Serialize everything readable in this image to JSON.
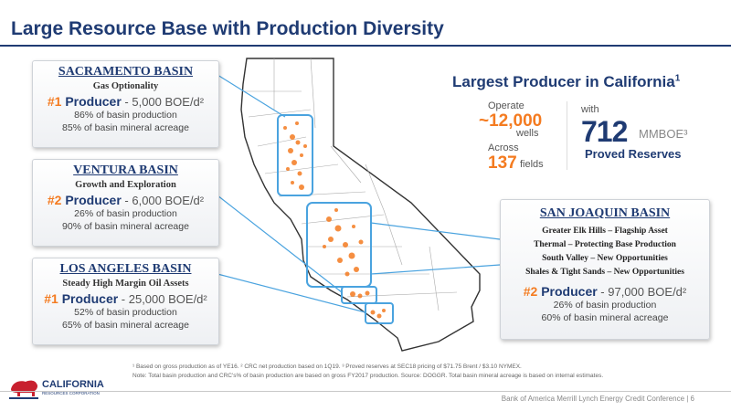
{
  "title": "Large Resource Base with Production Diversity",
  "sacramento": {
    "title": "SACRAMENTO BASIN",
    "subtitle": "Gas Optionality",
    "rank": "#1",
    "producer_label": "Producer",
    "production": " - 5,000 BOE/d²",
    "stat1": "86% of basin production",
    "stat2": "85% of basin mineral acreage"
  },
  "ventura": {
    "title": "VENTURA BASIN",
    "subtitle": "Growth and Exploration",
    "rank": "#2",
    "producer_label": "Producer",
    "production": " - 6,000 BOE/d²",
    "stat1": "26% of basin production",
    "stat2": "90% of basin mineral acreage"
  },
  "los_angeles": {
    "title": "LOS ANGELES BASIN",
    "subtitle": "Steady High Margin Oil Assets",
    "rank": "#1",
    "producer_label": "Producer",
    "production": " - 25,000 BOE/d²",
    "stat1": "52% of basin production",
    "stat2": "65% of basin mineral acreage"
  },
  "san_joaquin": {
    "title": "SAN JOAQUIN BASIN",
    "lines": [
      "Greater Elk Hills – Flagship Asset",
      "Thermal – Protecting Base Production",
      "South Valley – New Opportunities",
      "Shales & Tight Sands – New Opportunities"
    ],
    "rank": "#2",
    "producer_label": "Producer",
    "production": " - 97,000 BOE/d²",
    "stat1": "26% of basin production",
    "stat2": "60% of basin mineral acreage"
  },
  "largest": {
    "heading": "Largest Producer in California",
    "heading_sup": "1",
    "operate_label": "Operate",
    "wells_value": "~12,000",
    "wells_label": "wells",
    "across_label": "Across",
    "fields_value": "137",
    "fields_label": "fields",
    "with_label": "with",
    "reserves_value": "712",
    "reserves_unit": "MMBOE³",
    "reserves_label": "Proved Reserves"
  },
  "logo": {
    "name": "CALIFORNIA",
    "sub": "RESOURCES CORPORATION"
  },
  "footnotes": {
    "line1": "¹ Based on gross production as of YE16.   ² CRC net production based on 1Q19.   ³ Proved reserves at SEC18 pricing of $71.75 Brent / $3.10 NYMEX.",
    "line2": "Note: Total basin production and CRC's% of basin production are based on gross FY2017 production. Source: DOGGR. Total basin mineral acreage is based on internal estimates."
  },
  "footer": "Bank of America Merrill Lynch Energy Credit Conference | 6",
  "colors": {
    "navy": "#1f3b73",
    "orange": "#f47b20",
    "highlight": "#4aa3df"
  }
}
